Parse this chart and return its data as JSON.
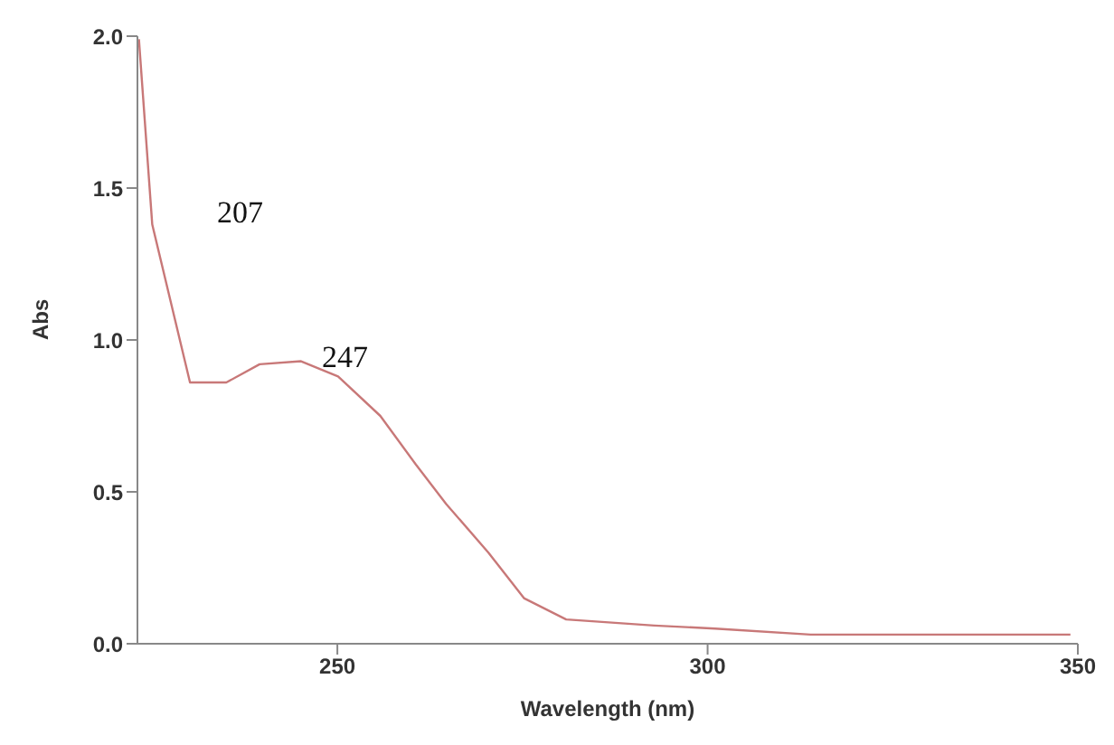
{
  "chart_data": {
    "type": "line",
    "xlabel": "Wavelength (nm)",
    "ylabel": "Abs",
    "x": [
      223.2,
      225.0,
      230.1,
      235.0,
      239.5,
      245.1,
      250.1,
      255.8,
      260.6,
      264.7,
      270.4,
      275.2,
      280.9,
      292.8,
      301,
      313.9,
      349
    ],
    "series": [
      {
        "color": "#c87878",
        "values": [
          1.99,
          1.38,
          0.86,
          0.86,
          0.92,
          0.93,
          0.88,
          0.75,
          0.59,
          0.46,
          0.3,
          0.15,
          0.08,
          0.06,
          0.05,
          0.03,
          0.03
        ]
      }
    ],
    "xlim": [
      223,
      350
    ],
    "xticks": [
      250,
      300,
      350
    ],
    "ylim": [
      0,
      2
    ],
    "yticks": [
      {
        "value": 0,
        "label": "0.0"
      },
      {
        "value": 0.5,
        "label": "0.5"
      },
      {
        "value": 1,
        "label": "1.0"
      },
      {
        "value": 1.5,
        "label": "1.5"
      },
      {
        "value": 2,
        "label": "2.0"
      }
    ],
    "annotations": [
      "207",
      "247"
    ],
    "grid": false,
    "legend": false,
    "marker": "none",
    "line_style": "solid"
  }
}
